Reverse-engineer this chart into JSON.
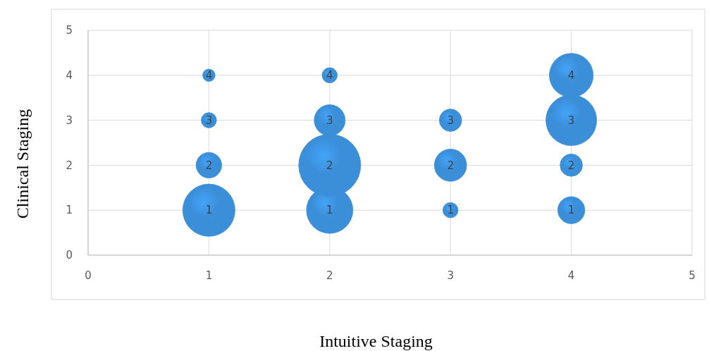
{
  "chart_data": {
    "type": "bubble",
    "xlabel": "Intuitive Staging",
    "ylabel": "Clinical Staging",
    "x": [
      1,
      1,
      1,
      1,
      2,
      2,
      2,
      2,
      3,
      3,
      3,
      4,
      4,
      4,
      4
    ],
    "values": [
      1,
      2,
      3,
      4,
      1,
      2,
      3,
      4,
      1,
      2,
      3,
      1,
      2,
      3,
      4
    ],
    "sizes": [
      0.71,
      0.17,
      0.06,
      0.04,
      0.56,
      1,
      0.25,
      0.06,
      0.06,
      0.27,
      0.13,
      0.19,
      0.13,
      0.67,
      0.5
    ],
    "color": "#3b8ed8",
    "xlim": [
      0,
      5
    ],
    "ylim": [
      0,
      5
    ],
    "xticks": [
      0,
      1,
      2,
      3,
      4,
      5
    ],
    "yticks": [
      0,
      1,
      2,
      3,
      4,
      5
    ],
    "grid": true,
    "data_labels": true
  }
}
